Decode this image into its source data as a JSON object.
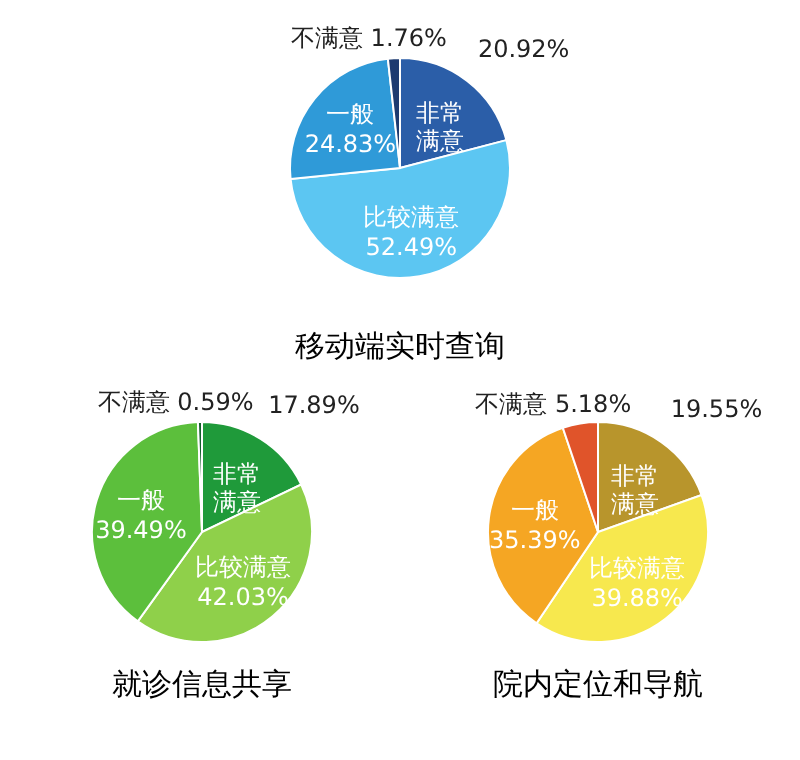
{
  "chart_data": [
    {
      "type": "pie",
      "title": "移动端实时查询",
      "categories": [
        "非常满意",
        "比较满意",
        "一般",
        "不满意"
      ],
      "values": [
        20.92,
        52.49,
        24.83,
        1.76
      ],
      "value_labels": [
        "20.92%",
        "52.49%",
        "24.83%",
        "1.76%"
      ],
      "colors": [
        "#2b5ea8",
        "#5cc6f2",
        "#2f9ad8",
        "#1d3a70"
      ]
    },
    {
      "type": "pie",
      "title": "就诊信息共享",
      "categories": [
        "非常满意",
        "比较满意",
        "一般",
        "不满意"
      ],
      "values": [
        17.89,
        42.03,
        39.49,
        0.59
      ],
      "value_labels": [
        "17.89%",
        "42.03%",
        "39.49%",
        "0.59%"
      ],
      "colors": [
        "#1f9a3a",
        "#8fd04a",
        "#5cbf3c",
        "#12602a"
      ]
    },
    {
      "type": "pie",
      "title": "院内定位和导航",
      "categories": [
        "非常满意",
        "比较满意",
        "一般",
        "不满意"
      ],
      "values": [
        19.55,
        39.88,
        35.39,
        5.18
      ],
      "value_labels": [
        "19.55%",
        "39.88%",
        "35.39%",
        "5.18%"
      ],
      "colors": [
        "#b8952c",
        "#f7e84e",
        "#f5a623",
        "#e0542a"
      ]
    }
  ]
}
